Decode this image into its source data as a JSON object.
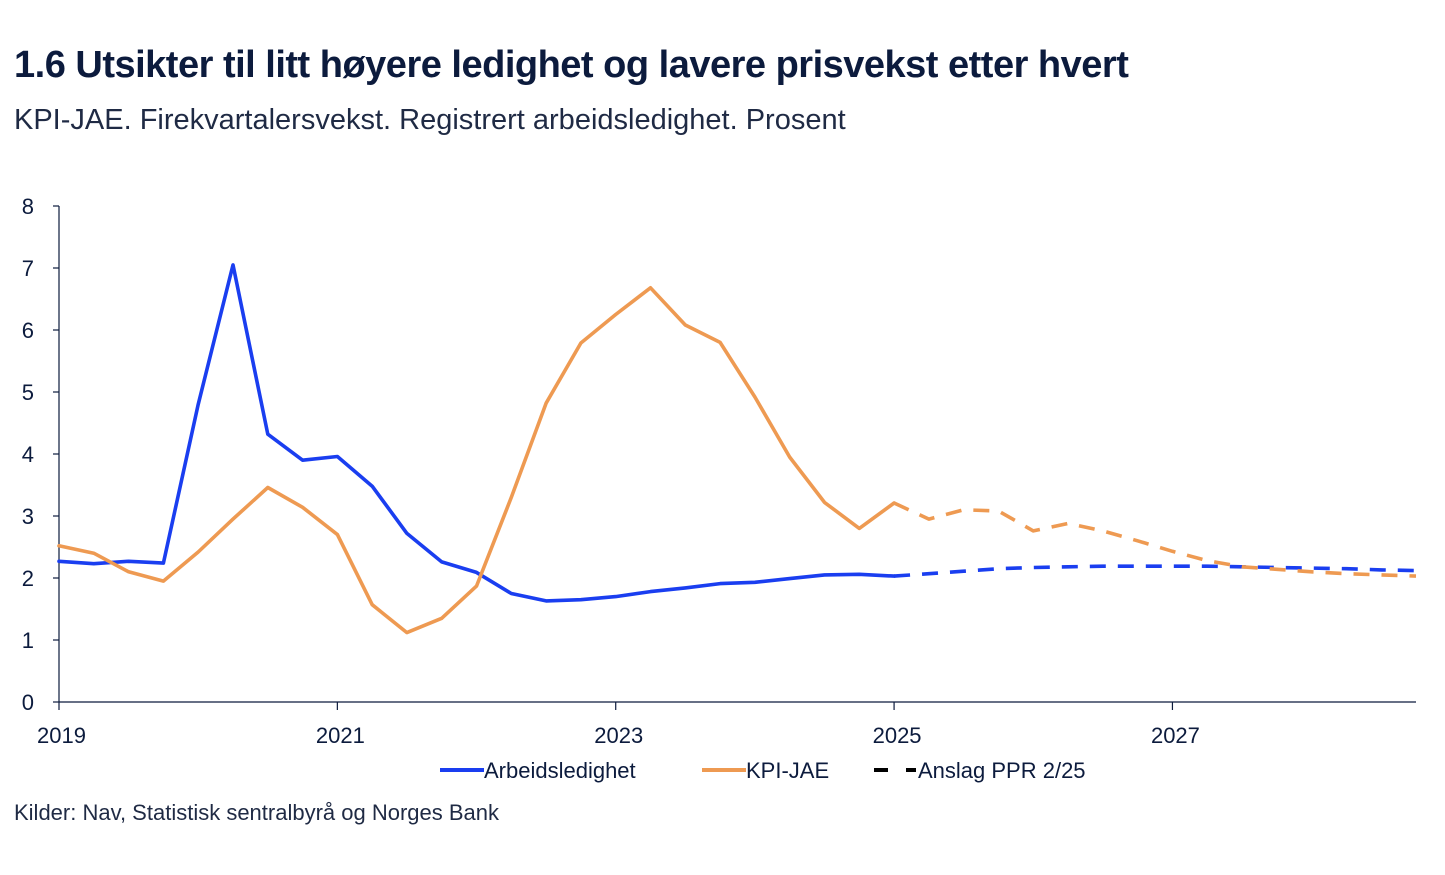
{
  "title": "1.6 Utsikter til litt høyere ledighet og lavere prisvekst etter hvert",
  "subtitle": "KPI-JAE. Firekvartalersvekst. Registrert arbeidsledighet. Prosent",
  "source": "Kilder: Nav, Statistisk sentralbyrå og Norges Bank",
  "colors": {
    "unemployment": "#1a3ef0",
    "cpi": "#ee9a52",
    "projection_legend": "#000000",
    "axis": "#0c1b3d"
  },
  "chart_data": {
    "type": "line",
    "title": "1.6 Utsikter til litt høyere ledighet og lavere prisvekst etter hvert",
    "ylim": [
      0,
      8
    ],
    "yticks": [
      0,
      1,
      2,
      3,
      4,
      5,
      6,
      7,
      8
    ],
    "xlim": [
      2019.0,
      2028.75
    ],
    "xticks": [
      "2019",
      "2021",
      "2023",
      "2025",
      "2027"
    ],
    "grid": false,
    "legend_position": "bottom",
    "legend": [
      "Arbeidsledighet",
      "KPI-JAE",
      "Anslag PPR 2/25"
    ],
    "series": [
      {
        "name": "Arbeidsledighet",
        "color": "#1a3ef0",
        "x": [
          2019.0,
          2019.25,
          2019.5,
          2019.75,
          2020.0,
          2020.25,
          2020.5,
          2020.75,
          2021.0,
          2021.25,
          2021.5,
          2021.75,
          2022.0,
          2022.25,
          2022.5,
          2022.75,
          2023.0,
          2023.25,
          2023.5,
          2023.75,
          2024.0,
          2024.25,
          2024.5,
          2024.75,
          2025.0
        ],
        "values": [
          2.27,
          2.23,
          2.27,
          2.24,
          4.8,
          7.05,
          4.32,
          3.9,
          3.96,
          3.48,
          2.72,
          2.26,
          2.09,
          1.75,
          1.63,
          1.65,
          1.7,
          1.78,
          1.84,
          1.91,
          1.93,
          1.99,
          2.05,
          2.06,
          2.03
        ],
        "projection_x": [
          2025.0,
          2025.25,
          2025.5,
          2025.75,
          2026.0,
          2026.25,
          2026.5,
          2026.75,
          2027.0,
          2027.25,
          2027.5,
          2027.75,
          2028.0,
          2028.25,
          2028.5,
          2028.75
        ],
        "projection_values": [
          2.03,
          2.07,
          2.11,
          2.15,
          2.17,
          2.18,
          2.19,
          2.19,
          2.19,
          2.19,
          2.18,
          2.17,
          2.16,
          2.15,
          2.13,
          2.12
        ]
      },
      {
        "name": "KPI-JAE",
        "color": "#ee9a52",
        "x": [
          2019.0,
          2019.25,
          2019.5,
          2019.75,
          2020.0,
          2020.25,
          2020.5,
          2020.75,
          2021.0,
          2021.25,
          2021.5,
          2021.75,
          2022.0,
          2022.25,
          2022.5,
          2022.75,
          2023.0,
          2023.25,
          2023.5,
          2023.75,
          2024.0,
          2024.25,
          2024.5,
          2024.75,
          2025.0
        ],
        "values": [
          2.52,
          2.4,
          2.1,
          1.95,
          2.42,
          2.95,
          3.46,
          3.14,
          2.7,
          1.57,
          1.12,
          1.35,
          1.87,
          3.3,
          4.82,
          5.79,
          6.25,
          6.68,
          6.08,
          5.8,
          4.92,
          3.95,
          3.22,
          2.8,
          3.21
        ],
        "projection_x": [
          2025.0,
          2025.25,
          2025.5,
          2025.75,
          2026.0,
          2026.25,
          2026.5,
          2026.75,
          2027.0,
          2027.25,
          2027.5,
          2027.75,
          2028.0,
          2028.25,
          2028.5,
          2028.75
        ],
        "projection_values": [
          3.21,
          2.95,
          3.1,
          3.08,
          2.76,
          2.88,
          2.76,
          2.6,
          2.43,
          2.28,
          2.18,
          2.14,
          2.1,
          2.07,
          2.05,
          2.03
        ]
      }
    ]
  }
}
